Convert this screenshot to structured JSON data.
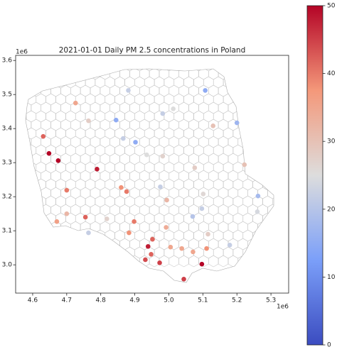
{
  "chart_data": {
    "type": "scatter",
    "title": "2021-01-01 Daily PM 2.5 concentrations in Poland",
    "x_offset_label": "1e6",
    "y_offset_label": "1e6",
    "x": [
      5.107,
      4.881,
      4.726,
      5.013,
      4.982,
      4.764,
      4.845,
      5.13,
      5.2,
      4.631,
      4.866,
      4.902,
      4.648,
      4.675,
      4.935,
      4.982,
      4.789,
      5.076,
      5.222,
      4.86,
      4.975,
      4.876,
      4.7,
      5.101,
      5.262,
      4.994,
      5.26,
      4.7,
      5.097,
      5.07,
      4.755,
      4.671,
      4.818,
      4.898,
      4.764,
      4.883,
      4.992,
      4.952,
      5.115,
      4.952,
      4.939,
      5.005,
      5.038,
      5.179,
      5.111,
      5.071,
      4.948,
      4.931,
      4.973,
      5.097,
      5.044
    ],
    "y": [
      3.512,
      3.512,
      3.475,
      3.458,
      3.444,
      3.423,
      3.425,
      3.408,
      3.417,
      3.377,
      3.371,
      3.36,
      3.327,
      3.306,
      3.323,
      3.319,
      3.281,
      3.285,
      3.294,
      3.227,
      3.229,
      3.215,
      3.219,
      3.208,
      3.202,
      3.19,
      3.156,
      3.15,
      3.165,
      3.142,
      3.14,
      3.127,
      3.135,
      3.127,
      3.094,
      3.094,
      3.11,
      3.077,
      3.09,
      3.075,
      3.054,
      3.052,
      3.048,
      3.058,
      3.048,
      3.038,
      3.031,
      3.015,
      3.006,
      3.002,
      2.958
    ],
    "values": [
      15,
      22,
      35,
      25,
      22,
      28,
      15,
      30,
      17,
      42,
      22,
      15,
      50,
      50,
      25,
      27,
      48,
      28,
      30,
      38,
      22,
      40,
      40,
      26,
      18,
      32,
      24,
      32,
      22,
      20,
      42,
      36,
      27,
      40,
      22,
      38,
      34,
      27,
      28,
      42,
      48,
      35,
      35,
      22,
      38,
      35,
      42,
      44,
      45,
      50,
      45
    ],
    "colormap": "coolwarm",
    "clim": [
      0,
      50
    ],
    "cticks": [
      0,
      10,
      20,
      30,
      40,
      50
    ],
    "xlim": [
      4.55,
      5.352
    ],
    "xticks": [
      4.6,
      4.7,
      4.8,
      4.9,
      {
        "value": 5,
        "label": "5.0"
      },
      5.1,
      5.2,
      5.3
    ],
    "ylim": [
      2.917,
      3.615
    ],
    "yticks": [
      {
        "value": 3,
        "label": "3.0"
      },
      3.1,
      3.2,
      3.3,
      3.4,
      3.5,
      3.6
    ]
  }
}
